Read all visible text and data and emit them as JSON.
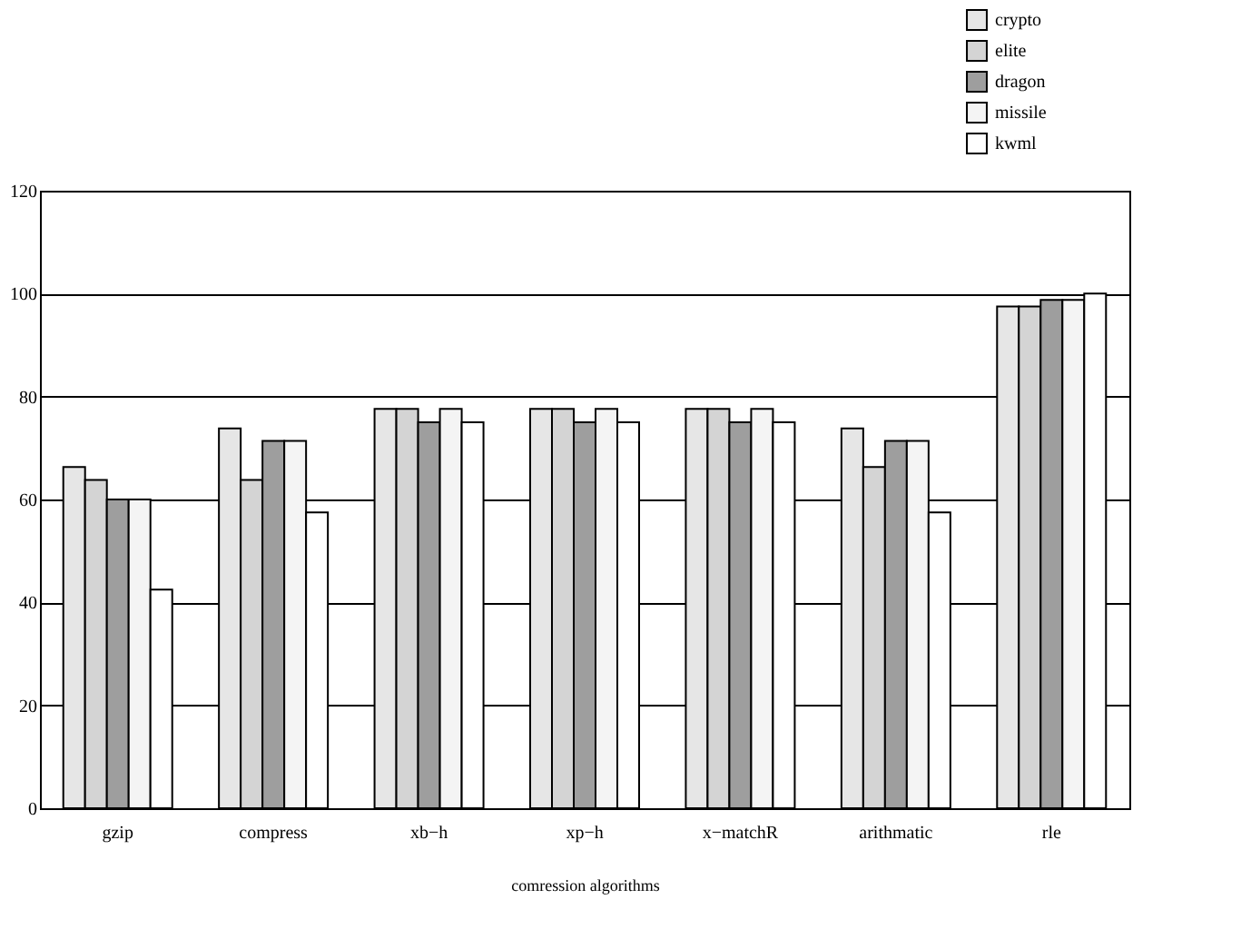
{
  "chart_data": {
    "type": "bar",
    "xlabel": "comression algorithms",
    "categories": [
      "gzip",
      "compress",
      "xb−h",
      "xp−h",
      "x−matchR",
      "arithmatic",
      "rle"
    ],
    "series": [
      {
        "name": "crypto",
        "color": "#e6e6e6",
        "values": [
          66.3,
          73.8,
          77.6,
          77.6,
          77.6,
          73.8,
          97.5
        ]
      },
      {
        "name": "elite",
        "color": "#d4d4d4",
        "values": [
          63.8,
          63.8,
          77.6,
          77.6,
          77.6,
          66.3,
          97.5
        ]
      },
      {
        "name": "dragon",
        "color": "#9e9e9e",
        "values": [
          60,
          71.4,
          75,
          75,
          75,
          71.4,
          98.8
        ]
      },
      {
        "name": "missile",
        "color": "#f4f4f4",
        "values": [
          60,
          71.4,
          77.6,
          77.6,
          77.6,
          71.4,
          98.8
        ]
      },
      {
        "name": "kwml",
        "color": "#ffffff",
        "values": [
          42.5,
          57.5,
          75,
          75,
          75,
          57.5,
          100
        ]
      }
    ],
    "ylim": [
      0,
      120
    ],
    "yticks": [
      0,
      20,
      40,
      60,
      80,
      100,
      120
    ],
    "grid": "y",
    "legend": "top right"
  }
}
